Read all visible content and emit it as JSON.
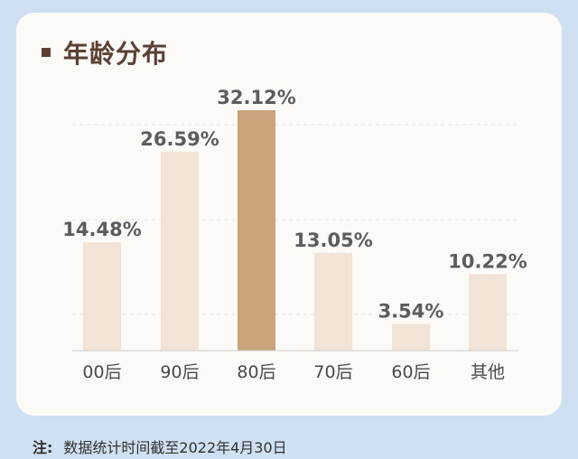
{
  "title": "年龄分布",
  "note_label": "注:",
  "note_text": "数据统计时间截至2022年4月30日",
  "colors": {
    "bar": "#f1e4d6",
    "highlight": "#caa37a",
    "text": "#5b4033"
  },
  "chart_data": {
    "type": "bar",
    "title": "年龄分布",
    "categories": [
      "00后",
      "90后",
      "80后",
      "70后",
      "60后",
      "其他"
    ],
    "values": [
      14.48,
      26.59,
      32.12,
      13.05,
      3.54,
      10.22
    ],
    "labels": [
      "14.48%",
      "26.59%",
      "32.12%",
      "13.05%",
      "3.54%",
      "10.22%"
    ],
    "highlight": "80后",
    "ylim": [
      0,
      32.12
    ],
    "grid": true
  }
}
